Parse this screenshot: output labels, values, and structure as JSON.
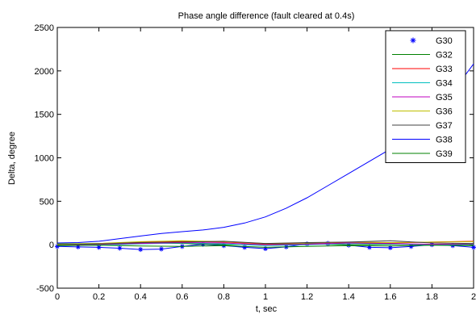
{
  "chart_data": {
    "type": "line",
    "title": "Phase angle difference (fault cleared at 0.4s)",
    "xlabel": "t, sec",
    "ylabel": "Delta, degree",
    "xlim": [
      0,
      2
    ],
    "ylim": [
      -500,
      2500
    ],
    "xticks": [
      0,
      0.2,
      0.4,
      0.6,
      0.8,
      1,
      1.2,
      1.4,
      1.6,
      1.8,
      2
    ],
    "xtick_labels": [
      "0",
      "0.2",
      "0.4",
      "0.6",
      "0.8",
      "1",
      "1.2",
      "1.4",
      "1.6",
      "1.8",
      "2"
    ],
    "yticks": [
      -500,
      0,
      500,
      1000,
      1500,
      2000,
      2500
    ],
    "ytick_labels": [
      "-500",
      "0",
      "500",
      "1000",
      "1500",
      "2000",
      "2500"
    ],
    "grid": false,
    "legend_position": "top-right",
    "series": [
      {
        "name": "G30",
        "color": "#0000ff",
        "marker": "star",
        "x": [
          0,
          0.1,
          0.2,
          0.3,
          0.4,
          0.5,
          0.6,
          0.7,
          0.8,
          0.9,
          1.0,
          1.1,
          1.2,
          1.3,
          1.4,
          1.5,
          1.6,
          1.7,
          1.8,
          1.9,
          2.0
        ],
        "y": [
          -20,
          -25,
          -30,
          -40,
          -55,
          -50,
          -20,
          5,
          -10,
          -30,
          -45,
          -25,
          10,
          15,
          -5,
          -30,
          -35,
          -20,
          0,
          -10,
          -30
        ]
      },
      {
        "name": "G32",
        "color": "#008000",
        "x": [
          0,
          0.2,
          0.4,
          0.6,
          0.8,
          1.0,
          1.2,
          1.4,
          1.6,
          1.8,
          2.0
        ],
        "y": [
          10,
          15,
          20,
          15,
          0,
          5,
          10,
          0,
          5,
          0,
          -5
        ]
      },
      {
        "name": "G33",
        "color": "#ff0000",
        "x": [
          0,
          0.2,
          0.4,
          0.6,
          0.8,
          1.0,
          1.2,
          1.4,
          1.6,
          1.8,
          2.0
        ],
        "y": [
          0,
          10,
          30,
          40,
          30,
          10,
          20,
          25,
          20,
          30,
          40
        ]
      },
      {
        "name": "G34",
        "color": "#00bfbf",
        "x": [
          0,
          0.2,
          0.4,
          0.6,
          0.8,
          1.0,
          1.2,
          1.4,
          1.6,
          1.8,
          2.0
        ],
        "y": [
          -10,
          -5,
          10,
          20,
          10,
          -10,
          0,
          15,
          10,
          0,
          5
        ]
      },
      {
        "name": "G35",
        "color": "#bf00bf",
        "x": [
          0,
          0.2,
          0.4,
          0.6,
          0.8,
          1.0,
          1.2,
          1.4,
          1.6,
          1.8,
          2.0
        ],
        "y": [
          0,
          5,
          15,
          25,
          20,
          0,
          5,
          20,
          15,
          5,
          10
        ]
      },
      {
        "name": "G36",
        "color": "#bfbf00",
        "x": [
          0,
          0.2,
          0.4,
          0.6,
          0.8,
          1.0,
          1.2,
          1.4,
          1.6,
          1.8,
          2.0
        ],
        "y": [
          5,
          15,
          35,
          45,
          35,
          15,
          20,
          30,
          25,
          30,
          35
        ]
      },
      {
        "name": "G37",
        "color": "#404040",
        "x": [
          0,
          0.2,
          0.4,
          0.6,
          0.8,
          1.0,
          1.2,
          1.4,
          1.6,
          1.8,
          2.0
        ],
        "y": [
          0,
          10,
          25,
          30,
          40,
          15,
          25,
          30,
          45,
          20,
          15
        ]
      },
      {
        "name": "G38",
        "color": "#0000ff",
        "x": [
          0,
          0.1,
          0.2,
          0.3,
          0.4,
          0.5,
          0.6,
          0.7,
          0.8,
          0.9,
          1.0,
          1.1,
          1.2,
          1.3,
          1.4,
          1.5,
          1.6,
          1.7,
          1.8,
          1.9,
          2.0
        ],
        "y": [
          20,
          25,
          40,
          70,
          100,
          130,
          150,
          170,
          200,
          250,
          320,
          420,
          540,
          680,
          820,
          960,
          1100,
          1300,
          1520,
          1760,
          2080
        ]
      },
      {
        "name": "G39",
        "color": "#008000",
        "x": [
          0,
          0.2,
          0.4,
          0.6,
          0.8,
          1.0,
          1.2,
          1.4,
          1.6,
          1.8,
          2.0
        ],
        "y": [
          -10,
          -5,
          -15,
          -20,
          -10,
          -30,
          -20,
          -10,
          -15,
          -5,
          -10
        ]
      }
    ]
  }
}
